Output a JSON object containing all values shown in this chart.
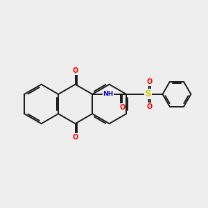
{
  "background_color": "#eeeeee",
  "bond_color": "#1a1a1a",
  "bond_width": 1.4,
  "atom_colors": {
    "O": "#ff0000",
    "N": "#0000bb",
    "S": "#cccc00",
    "H": "#6699aa",
    "C": "#1a1a1a"
  },
  "font_size": 7.0,
  "fig_width": 3.0,
  "fig_height": 3.0,
  "dpi": 100
}
